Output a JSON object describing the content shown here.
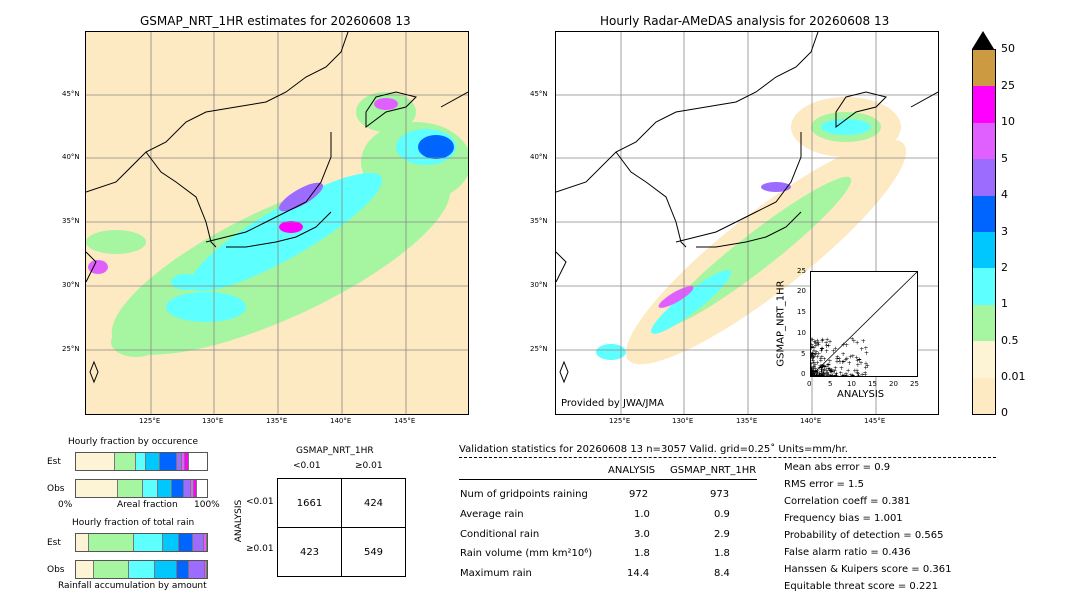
{
  "colors": {
    "c0": "#fde9c2",
    "c001": "#fdf3d5",
    "c05": "#a6f5a0",
    "c1": "#5effff",
    "c2": "#00c8ff",
    "c3": "#0064ff",
    "c4": "#9c6cff",
    "c5": "#e060ff",
    "c10": "#ff00ff",
    "c25": "#cc9a40",
    "c50": "#000000"
  },
  "chart_data": [
    {
      "type": "map",
      "title": "GSMAP_NRT_1HR estimates for 20260608 13",
      "lat_ticks": [
        "45°N",
        "40°N",
        "35°N",
        "30°N",
        "25°N"
      ],
      "lon_ticks": [
        "125°E",
        "130°E",
        "135°E",
        "140°E",
        "145°E"
      ]
    },
    {
      "type": "map",
      "title": "Hourly Radar-AMeDAS analysis for 20260608 13",
      "lat_ticks": [
        "45°N",
        "40°N",
        "35°N",
        "30°N",
        "25°N"
      ],
      "lon_ticks": [
        "125°E",
        "130°E",
        "135°E",
        "140°E",
        "145°E"
      ],
      "annotation": "Provided by JWA/JMA"
    },
    {
      "type": "scatter",
      "xlabel": "ANALYSIS",
      "ylabel": "GSMAP_NRT_1HR",
      "xlim": [
        0,
        25
      ],
      "ylim": [
        0,
        25
      ],
      "ticks": [
        "0",
        "5",
        "10",
        "15",
        "20",
        "25"
      ]
    },
    {
      "type": "colorbar",
      "labels": [
        "50",
        "25",
        "10",
        "5",
        "4",
        "3",
        "2",
        "1",
        "0.5",
        "0.01",
        "0"
      ]
    },
    {
      "type": "bar",
      "title": "Hourly fraction by occurence",
      "rows": [
        "Est",
        "Obs"
      ],
      "xlabel": "Areal fraction",
      "x_left": "0%",
      "x_right": "100%",
      "est": [
        0.29,
        0.15,
        0.07,
        0.1,
        0.12,
        0.03,
        0.02,
        0.02
      ],
      "obs": [
        0.31,
        0.19,
        0.1,
        0.1,
        0.09,
        0.04,
        0.02,
        0.01
      ]
    },
    {
      "type": "bar",
      "title": "Hourly fraction of total rain",
      "rows": [
        "Est",
        "Obs"
      ],
      "xlabel": "Rainfall accumulation by amount",
      "est": [
        0.1,
        0.35,
        0.23,
        0.12,
        0.1,
        0.08,
        0.02
      ],
      "obs": [
        0.14,
        0.27,
        0.2,
        0.17,
        0.09,
        0.12,
        0.01
      ]
    },
    {
      "type": "table",
      "title": "GSMAP_NRT_1HR",
      "col_labels": [
        "<0.01",
        "≥0.01"
      ],
      "row_axis": "ANALYSIS",
      "row_labels": [
        "<0.01",
        "≥0.01"
      ],
      "values": [
        [
          "1661",
          "424"
        ],
        [
          "423",
          "549"
        ]
      ]
    }
  ],
  "stats": {
    "header": "Validation statistics for 20260608 13  n=3057 Valid. grid=0.25˚ Units=mm/hr.",
    "col1": "ANALYSIS",
    "col2": "GSMAP_NRT_1HR",
    "rows": [
      {
        "label": "Num of gridpoints raining",
        "a": "972",
        "b": "973"
      },
      {
        "label": "Average rain",
        "a": "1.0",
        "b": "0.9"
      },
      {
        "label": "Conditional rain",
        "a": "3.0",
        "b": "2.9"
      },
      {
        "label": "Rain volume (mm km²10⁶)",
        "a": "1.8",
        "b": "1.8"
      },
      {
        "label": "Maximum rain",
        "a": "14.4",
        "b": "8.4"
      }
    ],
    "scores": [
      "Mean abs error =    0.9",
      "RMS error =    1.5",
      "Correlation coeff =  0.381",
      "Frequency bias =  1.001",
      "Probability of detection =  0.565",
      "False alarm ratio =  0.436",
      "Hanssen & Kuipers score =  0.361",
      "Equitable threat score =  0.221"
    ]
  }
}
